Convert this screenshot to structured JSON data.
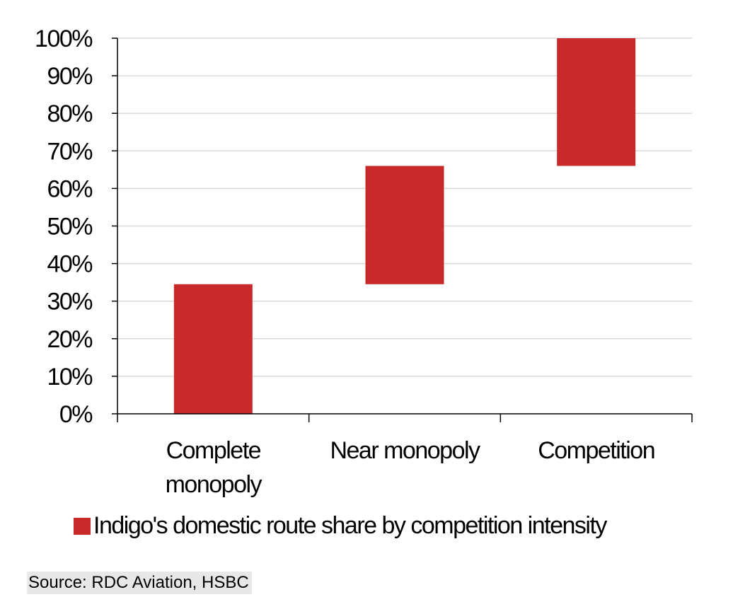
{
  "chart_data": {
    "type": "bar",
    "subtype": "floating",
    "categories": [
      "Complete monopoly",
      "Near monopoly",
      "Competition"
    ],
    "category_labels": [
      [
        "Complete",
        "monopoly"
      ],
      [
        "Near monopoly"
      ],
      [
        "Competition"
      ]
    ],
    "series": [
      {
        "name": "Indigo's domestic route share by competition intensity",
        "ranges": [
          [
            0,
            34.5
          ],
          [
            34.5,
            66
          ],
          [
            66,
            100
          ]
        ],
        "color": "#c9292a"
      }
    ],
    "ylim": [
      0,
      100
    ],
    "yticks": [
      0,
      10,
      20,
      30,
      40,
      50,
      60,
      70,
      80,
      90,
      100
    ],
    "ytick_labels": [
      "0%",
      "10%",
      "20%",
      "30%",
      "40%",
      "50%",
      "60%",
      "70%",
      "80%",
      "90%",
      "100%"
    ],
    "grid": true,
    "legend_position": "bottom"
  },
  "colors": {
    "bar": "#c9292a",
    "grid": "#d9d9d9",
    "axis": "#000000"
  },
  "legend": {
    "label": "Indigo's domestic route share by competition intensity"
  },
  "source": {
    "text": "Source: RDC Aviation, HSBC"
  }
}
